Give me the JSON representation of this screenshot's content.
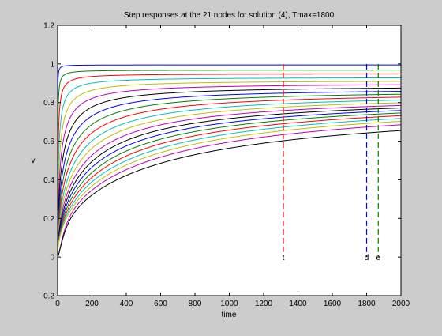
{
  "chart_data": {
    "type": "line",
    "title": "Step responses at the 21 nodes for solution (4), Tmax=1800",
    "xlabel": "time",
    "ylabel": "v",
    "xlim": [
      0,
      2000
    ],
    "ylim": [
      -0.2,
      1.2
    ],
    "xticks": [
      0,
      200,
      400,
      600,
      800,
      1000,
      1200,
      1400,
      1600,
      1800,
      2000
    ],
    "yticks": [
      -0.2,
      0,
      0.2,
      0.4,
      0.6,
      0.8,
      1,
      1.2
    ],
    "ytick_labels": [
      "-0.2",
      "0",
      "0.2",
      "0.4",
      "0.6",
      "0.8",
      "1",
      "1.2"
    ],
    "grid": false,
    "legend": "none",
    "series_colors": [
      "#0000ff",
      "#008000",
      "#ff0000",
      "#00bfbf",
      "#bfbf00",
      "#bf00bf",
      "#000000"
    ],
    "series_final_values_at_2000": [
      0.995,
      0.968,
      0.948,
      0.928,
      0.91,
      0.892,
      0.875,
      0.858,
      0.843,
      0.828,
      0.813,
      0.799,
      0.785,
      0.772,
      0.759,
      0.746,
      0.732,
      0.718,
      0.703,
      0.685,
      0.655
    ],
    "markers": [
      {
        "label": "t",
        "x": 1315,
        "y_top": 1.0,
        "color": "#ff0000"
      },
      {
        "label": "d",
        "x": 1800,
        "y_top": 1.0,
        "color": "#0000ff"
      },
      {
        "label": "e",
        "x": 1868,
        "y_top": 1.0,
        "color": "#008000"
      }
    ]
  }
}
